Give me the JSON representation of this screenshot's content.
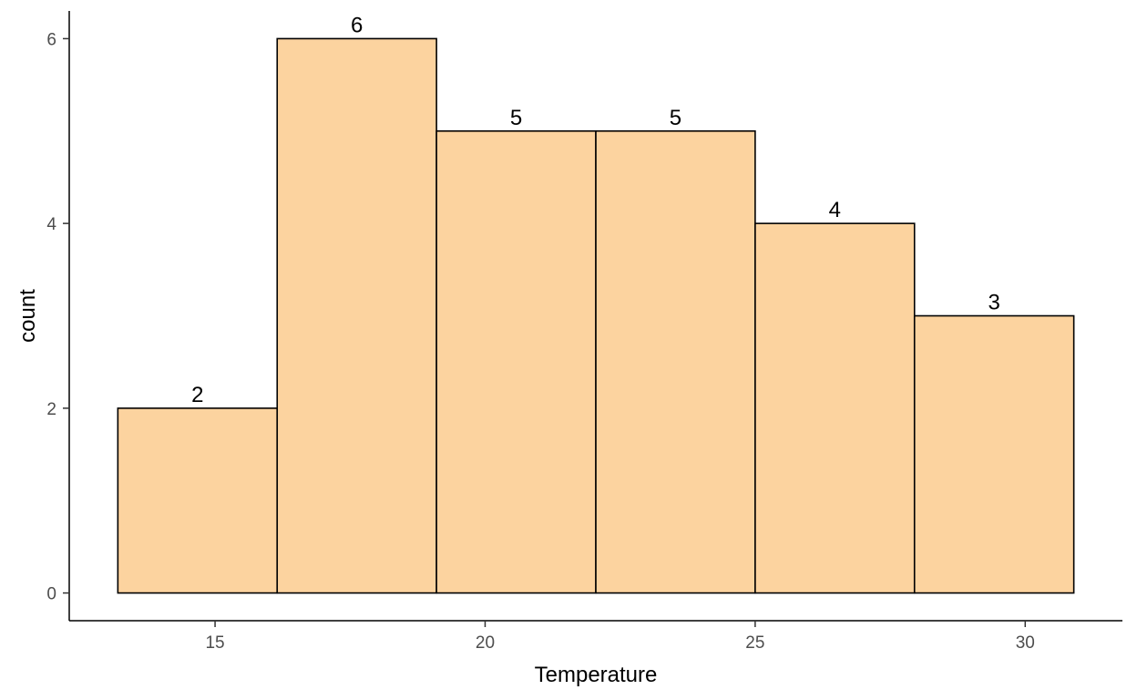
{
  "chart_data": {
    "type": "bar",
    "subtype": "histogram",
    "title": "",
    "xlabel": "Temperature",
    "ylabel": "count",
    "bins": [
      {
        "x0": 13.2,
        "x1": 16.15,
        "count": 2,
        "label": "2"
      },
      {
        "x0": 16.15,
        "x1": 19.1,
        "count": 6,
        "label": "6"
      },
      {
        "x0": 19.1,
        "x1": 22.05,
        "count": 5,
        "label": "5"
      },
      {
        "x0": 22.05,
        "x1": 25.0,
        "count": 5,
        "label": "5"
      },
      {
        "x0": 25.0,
        "x1": 27.95,
        "count": 4,
        "label": "4"
      },
      {
        "x0": 27.95,
        "x1": 30.9,
        "count": 3,
        "label": "3"
      }
    ],
    "xlim": [
      12.3,
      31.8
    ],
    "ylim": [
      -0.3,
      6.3
    ],
    "x_ticks": [
      15,
      20,
      25,
      30
    ],
    "x_tick_labels": [
      "15",
      "20",
      "25",
      "30"
    ],
    "y_ticks": [
      0,
      2,
      4,
      6
    ],
    "y_tick_labels": [
      "0",
      "2",
      "4",
      "6"
    ],
    "grid": false,
    "legend": "none",
    "colors": {
      "fill": "#fcd39f",
      "outline": "#000000"
    }
  }
}
